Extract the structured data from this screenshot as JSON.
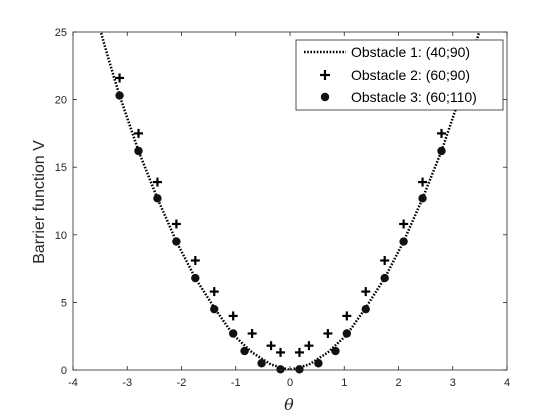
{
  "chart_data": {
    "type": "scatter",
    "xlabel": "θ",
    "ylabel": "Barrier function V",
    "xlim": [
      -4,
      4
    ],
    "ylim": [
      0,
      25
    ],
    "x_ticks": [
      "-4",
      "-3",
      "-2",
      "-1",
      "0",
      "1",
      "2",
      "3",
      "4"
    ],
    "y_ticks": [
      "0",
      "5",
      "10",
      "15",
      "20",
      "25"
    ],
    "grid": false,
    "legend_position": "top-right",
    "series": [
      {
        "name": "Obstacle 1: (40;90)",
        "style": "dotted-line",
        "x": [
          -3.1416,
          -2.7925,
          -2.4435,
          -2.0944,
          -1.7453,
          -1.3963,
          -1.0472,
          -0.6981,
          -0.3491,
          0.0,
          0.3491,
          0.6981,
          1.0472,
          1.3963,
          1.7453,
          2.0944,
          2.4435,
          2.7925,
          3.1416
        ],
        "y": [
          20.3,
          16.2,
          12.7,
          9.5,
          6.8,
          4.6,
          2.6,
          1.3,
          0.4,
          0.0,
          0.4,
          1.3,
          2.6,
          4.6,
          6.8,
          9.5,
          12.7,
          16.2,
          20.3
        ]
      },
      {
        "name": "Obstacle 2: (60;90)",
        "style": "plus-marker",
        "x": [
          -3.1416,
          -2.7925,
          -2.4435,
          -2.0944,
          -1.7453,
          -1.3963,
          -1.0472,
          -0.6981,
          -0.3491,
          -0.1745,
          0.1745,
          0.3491,
          0.6981,
          1.0472,
          1.3963,
          1.7453,
          2.0944,
          2.4435,
          2.7925,
          3.1416
        ],
        "y": [
          21.6,
          17.5,
          13.9,
          10.8,
          8.1,
          5.8,
          4.0,
          2.7,
          1.8,
          1.3,
          1.3,
          1.8,
          2.7,
          4.0,
          5.8,
          8.1,
          10.8,
          13.9,
          17.5,
          21.6
        ]
      },
      {
        "name": "Obstacle 3: (60;110)",
        "style": "dot-marker",
        "x": [
          -3.1416,
          -2.7925,
          -2.4435,
          -2.0944,
          -1.7453,
          -1.3963,
          -1.0472,
          -0.8378,
          -0.5236,
          -0.1745,
          0.1745,
          0.5236,
          0.8378,
          1.0472,
          1.3963,
          1.7453,
          2.0944,
          2.4435,
          2.7925,
          3.1416
        ],
        "y": [
          20.3,
          16.2,
          12.7,
          9.5,
          6.8,
          4.5,
          2.7,
          1.4,
          0.5,
          0.05,
          0.05,
          0.5,
          1.4,
          2.7,
          4.5,
          6.8,
          9.5,
          12.7,
          16.2,
          20.3
        ]
      }
    ]
  }
}
